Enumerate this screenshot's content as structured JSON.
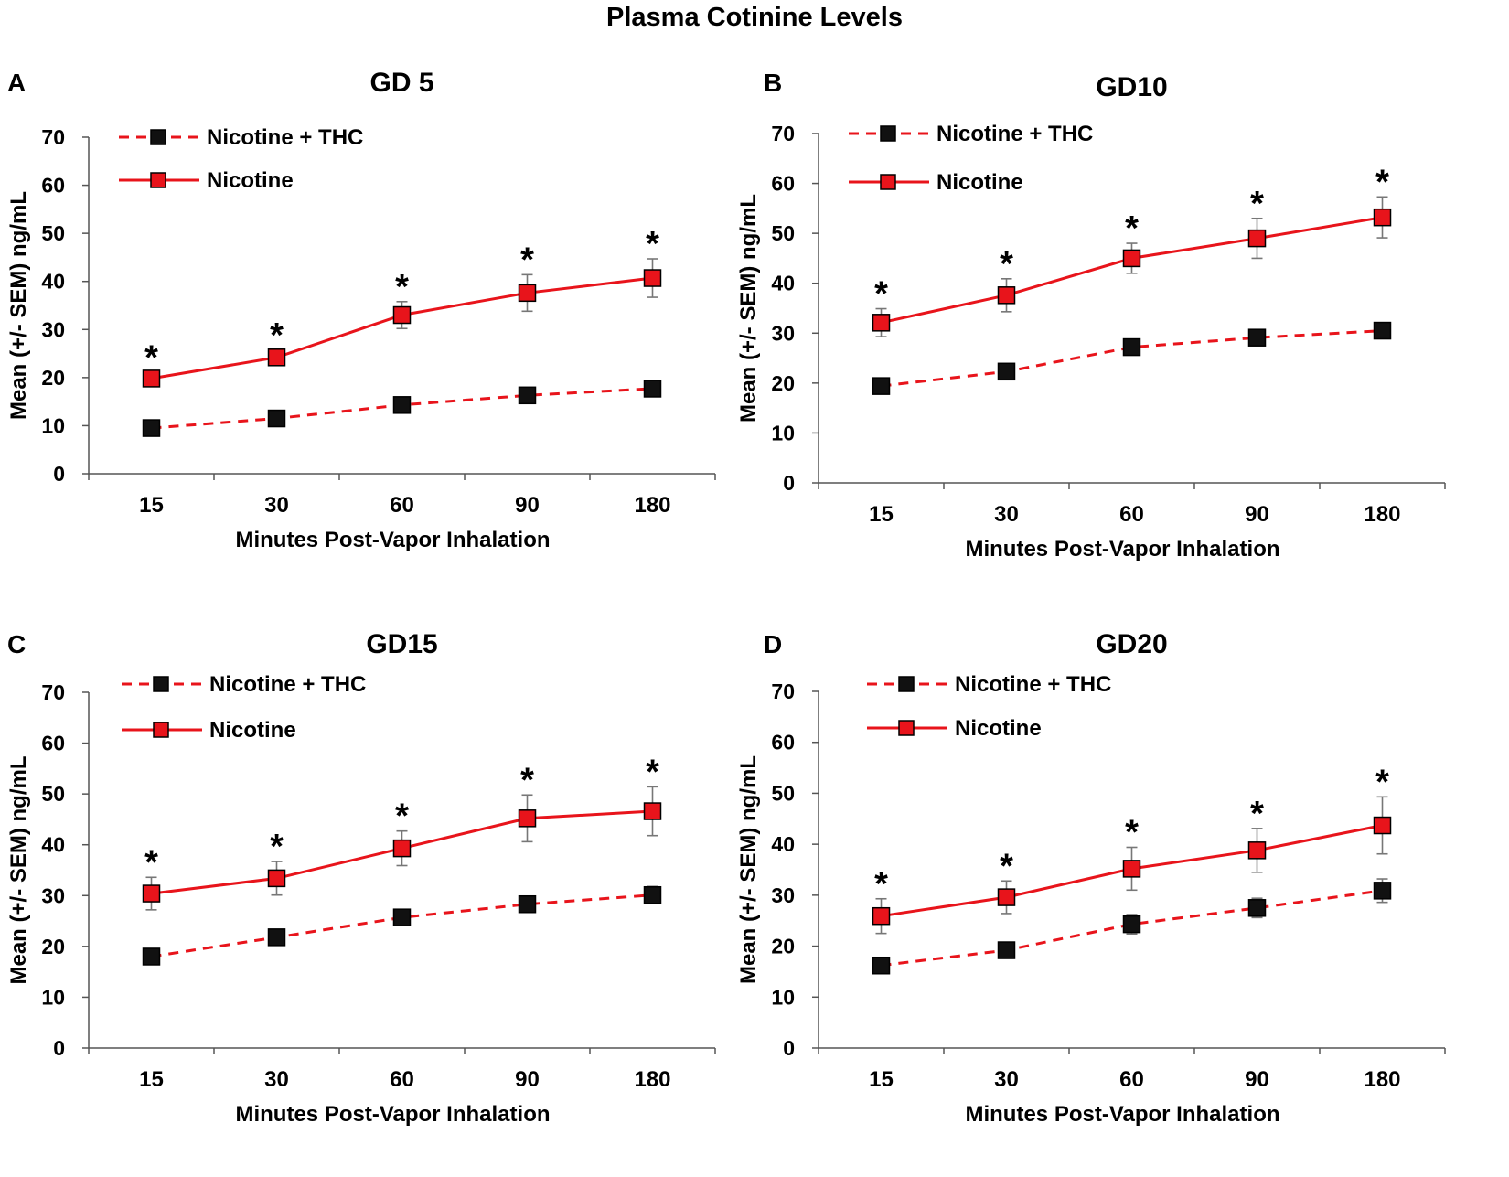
{
  "figure_title": "Plasma Cotinine Levels",
  "colors": {
    "line": "#e8141b",
    "marker_red": "#e8141b",
    "marker_black": "#111111",
    "error_bar": "#777777",
    "axis": "#555555",
    "text": "#000000"
  },
  "chart_data": [
    {
      "type": "line",
      "panel_label": "A",
      "title": "GD 5",
      "categories": [
        "15",
        "30",
        "60",
        "90",
        "180"
      ],
      "xlabel": "Minutes Post-Vapor Inhalation",
      "ylabel": "Mean (+/- SEM) ng/mL",
      "ylim": [
        0,
        70
      ],
      "yticks": [
        "0",
        "10",
        "20",
        "30",
        "40",
        "50",
        "60",
        "70"
      ],
      "legend_position": "top-left",
      "series": [
        {
          "name": "Nicotine + THC",
          "style": "dashed",
          "marker": "black-square",
          "values": [
            9.5,
            11.5,
            14.3,
            16.3,
            17.7
          ],
          "sem": [
            0.8,
            1.0,
            1.2,
            1.3,
            1.4
          ]
        },
        {
          "name": "Nicotine",
          "style": "solid",
          "marker": "red-square",
          "values": [
            19.8,
            24.2,
            33.0,
            37.6,
            40.7
          ],
          "sem": [
            1.2,
            1.5,
            2.8,
            3.8,
            4.0
          ]
        }
      ],
      "significance": [
        "*",
        "*",
        "*",
        "*",
        "*"
      ]
    },
    {
      "type": "line",
      "panel_label": "B",
      "title": "GD10",
      "categories": [
        "15",
        "30",
        "60",
        "90",
        "180"
      ],
      "xlabel": "Minutes Post-Vapor Inhalation",
      "ylabel": "Mean (+/- SEM) ng/mL",
      "ylim": [
        0,
        70
      ],
      "yticks": [
        "0",
        "10",
        "20",
        "30",
        "40",
        "50",
        "60",
        "70"
      ],
      "legend_position": "top-left",
      "series": [
        {
          "name": "Nicotine + THC",
          "style": "dashed",
          "marker": "black-square",
          "values": [
            19.4,
            22.3,
            27.2,
            29.1,
            30.5
          ],
          "sem": [
            1.0,
            1.5,
            1.4,
            1.2,
            1.3
          ]
        },
        {
          "name": "Nicotine",
          "style": "solid",
          "marker": "red-square",
          "values": [
            32.1,
            37.6,
            45.0,
            49.0,
            53.2
          ],
          "sem": [
            2.8,
            3.3,
            3.0,
            4.0,
            4.1
          ]
        }
      ],
      "significance": [
        "*",
        "*",
        "*",
        "*",
        "*"
      ]
    },
    {
      "type": "line",
      "panel_label": "C",
      "title": "GD15",
      "categories": [
        "15",
        "30",
        "60",
        "90",
        "180"
      ],
      "xlabel": "Minutes Post-Vapor Inhalation",
      "ylabel": "Mean (+/- SEM) ng/mL",
      "ylim": [
        0,
        70
      ],
      "yticks": [
        "0",
        "10",
        "20",
        "30",
        "40",
        "50",
        "60",
        "70"
      ],
      "legend_position": "top-left",
      "series": [
        {
          "name": "Nicotine + THC",
          "style": "dashed",
          "marker": "black-square",
          "values": [
            18.0,
            21.8,
            25.7,
            28.3,
            30.1
          ],
          "sem": [
            0.9,
            1.2,
            1.3,
            1.6,
            1.7
          ]
        },
        {
          "name": "Nicotine",
          "style": "solid",
          "marker": "red-square",
          "values": [
            30.4,
            33.4,
            39.3,
            45.2,
            46.6
          ],
          "sem": [
            3.2,
            3.3,
            3.4,
            4.6,
            4.8
          ]
        }
      ],
      "significance": [
        "*",
        "*",
        "*",
        "*",
        "*"
      ]
    },
    {
      "type": "line",
      "panel_label": "D",
      "title": "GD20",
      "categories": [
        "15",
        "30",
        "60",
        "90",
        "180"
      ],
      "xlabel": "Minutes Post-Vapor Inhalation",
      "ylabel": "Mean (+/- SEM) ng/mL",
      "ylim": [
        0,
        70
      ],
      "yticks": [
        "0",
        "10",
        "20",
        "30",
        "40",
        "50",
        "60",
        "70"
      ],
      "legend_position": "top-left",
      "series": [
        {
          "name": "Nicotine + THC",
          "style": "dashed",
          "marker": "black-square",
          "values": [
            16.2,
            19.2,
            24.3,
            27.5,
            30.9
          ],
          "sem": [
            0.8,
            1.0,
            1.9,
            1.9,
            2.3
          ]
        },
        {
          "name": "Nicotine",
          "style": "solid",
          "marker": "red-square",
          "values": [
            25.9,
            29.6,
            35.2,
            38.8,
            43.7
          ],
          "sem": [
            3.4,
            3.2,
            4.2,
            4.3,
            5.6
          ]
        }
      ],
      "significance": [
        "*",
        "*",
        "*",
        "*",
        "*"
      ]
    }
  ]
}
